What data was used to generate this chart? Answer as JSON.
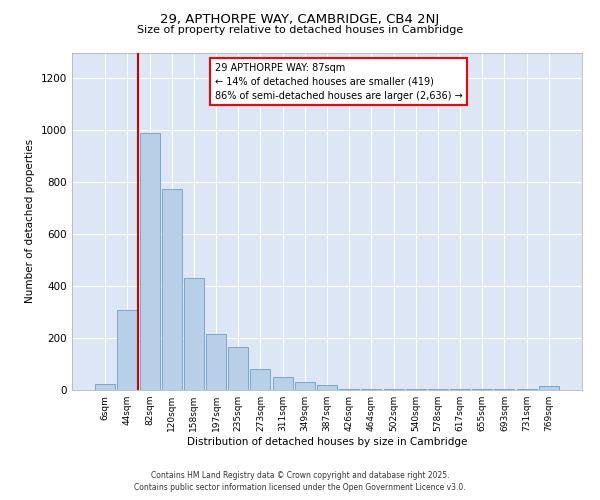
{
  "title_line1": "29, APTHORPE WAY, CAMBRIDGE, CB4 2NJ",
  "title_line2": "Size of property relative to detached houses in Cambridge",
  "xlabel": "Distribution of detached houses by size in Cambridge",
  "ylabel": "Number of detached properties",
  "categories": [
    "6sqm",
    "44sqm",
    "82sqm",
    "120sqm",
    "158sqm",
    "197sqm",
    "235sqm",
    "273sqm",
    "311sqm",
    "349sqm",
    "387sqm",
    "426sqm",
    "464sqm",
    "502sqm",
    "540sqm",
    "578sqm",
    "617sqm",
    "655sqm",
    "693sqm",
    "731sqm",
    "769sqm"
  ],
  "bar_values": [
    22,
    310,
    990,
    775,
    430,
    215,
    165,
    80,
    50,
    30,
    18,
    5,
    5,
    5,
    5,
    5,
    5,
    5,
    5,
    5,
    15
  ],
  "bar_color": "#b8cfe8",
  "bar_edge_color": "#6a9fc8",
  "background_color": "#dce6f5",
  "vline_color": "#cc0000",
  "annotation_text": "29 APTHORPE WAY: 87sqm\n← 14% of detached houses are smaller (419)\n86% of semi-detached houses are larger (2,636) →",
  "footer_line1": "Contains HM Land Registry data © Crown copyright and database right 2025.",
  "footer_line2": "Contains public sector information licensed under the Open Government Licence v3.0.",
  "ylim": [
    0,
    1300
  ],
  "yticks": [
    0,
    200,
    400,
    600,
    800,
    1000,
    1200
  ]
}
